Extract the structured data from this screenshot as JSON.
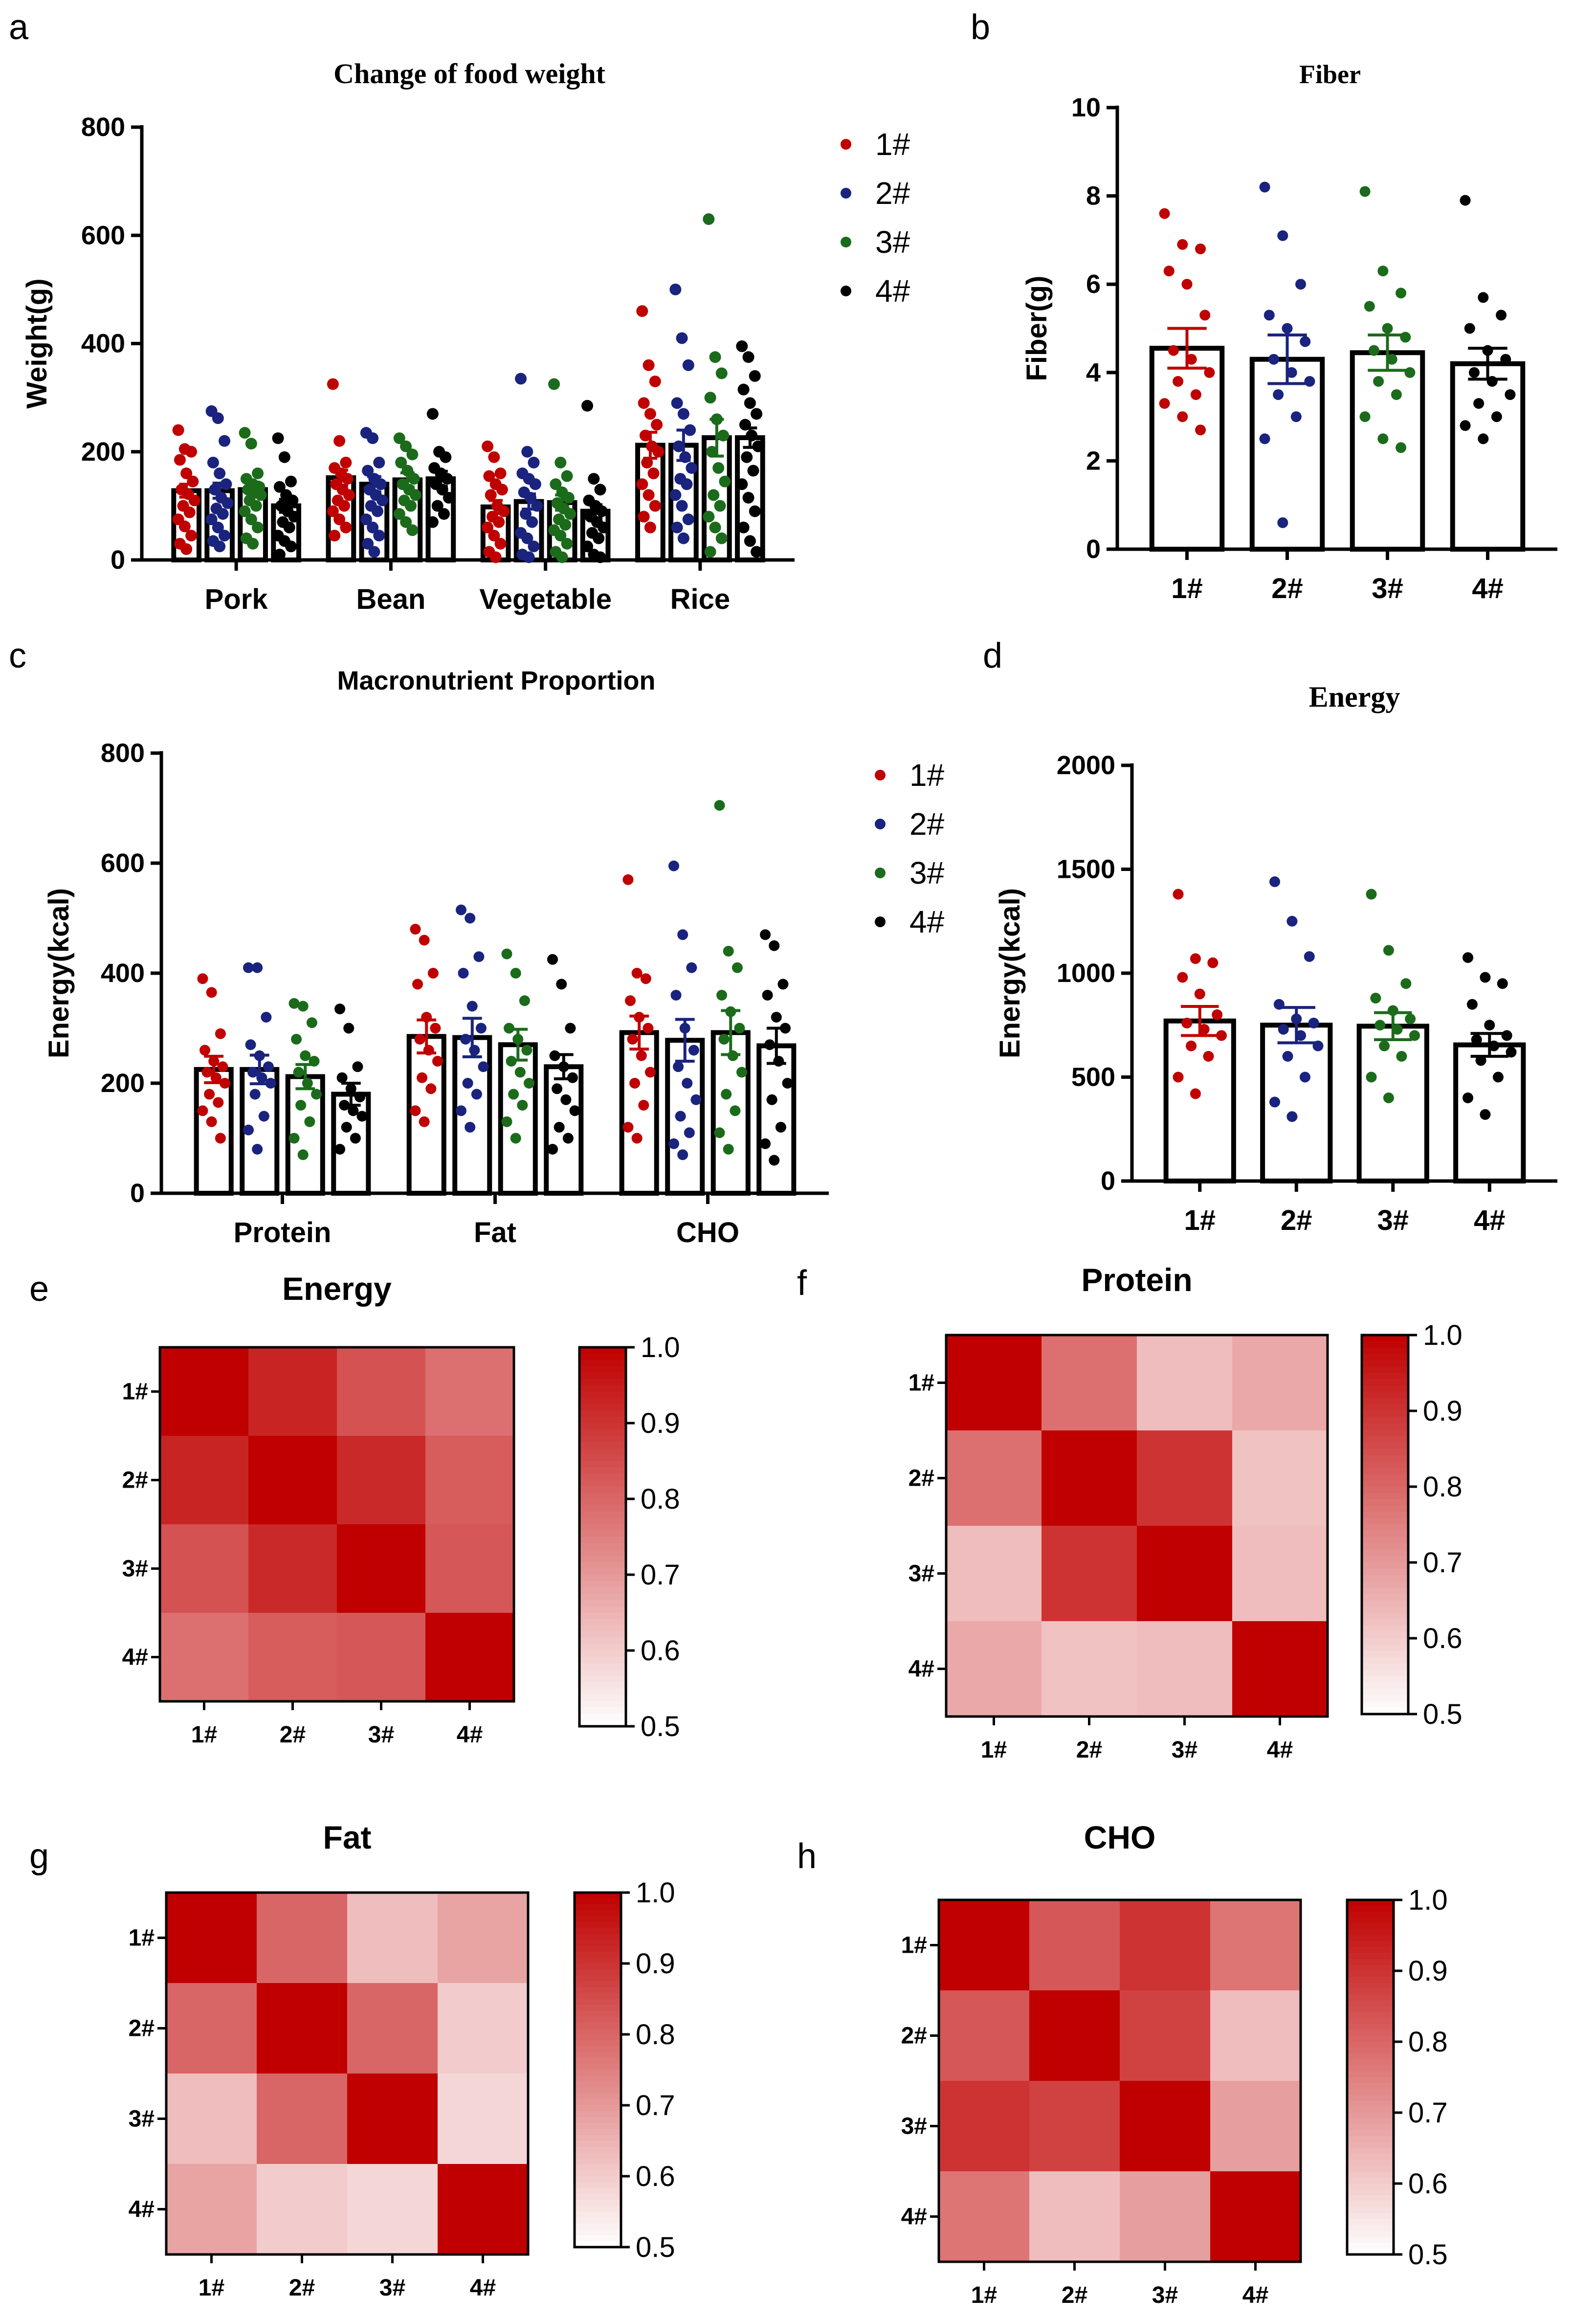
{
  "colors": {
    "s1": "#c00000",
    "s2": "#1a237e",
    "s3": "#1b6b1b",
    "s4": "#000000",
    "heat_low": "#ffffff",
    "heat_high": "#c00000"
  },
  "chart_data": [
    {
      "panel": "a",
      "type": "bar",
      "title": "Change of  food weight",
      "ylabel": "Weight(g)",
      "xlabel": "",
      "ylim": [
        0,
        800
      ],
      "yticks": [
        0,
        200,
        400,
        600,
        800
      ],
      "categories": [
        "Pork",
        "Bean",
        "Vegetable",
        "Rice"
      ],
      "legend": [
        "1#",
        "2#",
        "3#",
        "4#"
      ],
      "series": [
        {
          "name": "1#",
          "color": "#c00000",
          "values": [
            128,
            152,
            98,
            212
          ],
          "sem": [
            12,
            14,
            12,
            24
          ],
          "points": [
            [
              240,
              205,
              200,
              185,
              160,
              145,
              130,
              122,
              110,
              100,
              88,
              75,
              62,
              45,
              30,
              20
            ],
            [
              325,
              220,
              180,
              170,
              160,
              150,
              140,
              130,
              120,
              110,
              100,
              90,
              75,
              60,
              45
            ],
            [
              210,
              190,
              160,
              155,
              140,
              130,
              120,
              100,
              90,
              80,
              70,
              60,
              45,
              30,
              15,
              5
            ],
            [
              460,
              360,
              330,
              290,
              270,
              250,
              230,
              210,
              200,
              180,
              160,
              140,
              120,
              100,
              80,
              60
            ]
          ]
        },
        {
          "name": "2#",
          "color": "#1a237e",
          "values": [
            128,
            140,
            108,
            212
          ],
          "sem": [
            14,
            14,
            14,
            28
          ],
          "points": [
            [
              275,
              262,
              220,
              180,
              160,
              140,
              130,
              115,
              105,
              95,
              85,
              75,
              60,
              45,
              35,
              25
            ],
            [
              235,
              225,
              180,
              165,
              150,
              140,
              130,
              120,
              110,
              100,
              90,
              75,
              60,
              45,
              30,
              15
            ],
            [
              335,
              200,
              180,
              160,
              150,
              140,
              125,
              115,
              100,
              85,
              70,
              50,
              40,
              25,
              10,
              5
            ],
            [
              500,
              410,
              360,
              290,
              270,
              240,
              210,
              190,
              170,
              150,
              140,
              120,
              100,
              75,
              60,
              40
            ]
          ]
        },
        {
          "name": "3#",
          "color": "#1b6b1b",
          "values": [
            130,
            148,
            106,
            226
          ],
          "sem": [
            14,
            13,
            14,
            34
          ],
          "points": [
            [
              235,
              215,
              160,
              150,
              140,
              135,
              130,
              125,
              120,
              110,
              100,
              90,
              75,
              60,
              40,
              30
            ],
            [
              225,
              210,
              195,
              180,
              165,
              150,
              140,
              130,
              120,
              110,
              100,
              85,
              70,
              55
            ],
            [
              325,
              180,
              155,
              140,
              125,
              115,
              105,
              95,
              85,
              75,
              65,
              55,
              45,
              30,
              15,
              5
            ],
            [
              630,
              375,
              345,
              300,
              260,
              230,
              200,
              170,
              145,
              120,
              100,
              80,
              60,
              40,
              15
            ]
          ]
        },
        {
          "name": "4#",
          "color": "#000000",
          "values": [
            100,
            150,
            90,
            226
          ],
          "sem": [
            12,
            14,
            12,
            18
          ],
          "points": [
            [
              225,
              190,
              145,
              135,
              120,
              110,
              100,
              90,
              80,
              70,
              60,
              45,
              35,
              25,
              10
            ],
            [
              270,
              200,
              190,
              170,
              160,
              150,
              140,
              130,
              115,
              100,
              85,
              70
            ],
            [
              285,
              150,
              130,
              110,
              100,
              90,
              80,
              70,
              60,
              50,
              40,
              25,
              10,
              5
            ],
            [
              395,
              375,
              340,
              315,
              290,
              270,
              250,
              230,
              210,
              190,
              165,
              140,
              115,
              90,
              60,
              35,
              15
            ]
          ]
        }
      ]
    },
    {
      "panel": "b",
      "type": "bar",
      "title": "Fiber",
      "ylabel": "Fiber(g)",
      "xlabel": "",
      "ylim": [
        0,
        10
      ],
      "yticks": [
        0,
        2,
        4,
        6,
        8,
        10
      ],
      "categories": [
        "1#",
        "2#",
        "3#",
        "4#"
      ],
      "values": [
        4.55,
        4.3,
        4.45,
        4.2
      ],
      "sem": [
        0.45,
        0.55,
        0.4,
        0.35
      ],
      "colors": [
        "#c00000",
        "#1a237e",
        "#1b6b1b",
        "#000000"
      ],
      "points": [
        [
          7.6,
          6.9,
          6.8,
          6.3,
          6.0,
          5.3,
          4.5,
          4.3,
          4.0,
          3.8,
          3.5,
          3.3,
          3.0,
          2.7
        ],
        [
          8.2,
          7.1,
          6.0,
          5.3,
          5.0,
          4.7,
          4.3,
          4.0,
          3.8,
          3.5,
          3.0,
          2.5,
          0.6
        ],
        [
          8.1,
          6.3,
          5.8,
          5.5,
          5.0,
          4.8,
          4.5,
          4.3,
          4.0,
          3.8,
          3.5,
          3.0,
          2.5,
          2.3
        ],
        [
          7.9,
          5.7,
          5.3,
          5.0,
          4.5,
          4.3,
          4.0,
          3.8,
          3.5,
          3.3,
          3.0,
          2.8,
          2.5
        ]
      ]
    },
    {
      "panel": "c",
      "type": "bar",
      "title": "Macronutrient Proportion",
      "ylabel": "Energy(kcal)",
      "xlabel": "",
      "ylim": [
        0,
        800
      ],
      "yticks": [
        0,
        200,
        400,
        600,
        800
      ],
      "categories": [
        "Protein",
        "Fat",
        "CHO"
      ],
      "legend": [
        "1#",
        "2#",
        "3#",
        "4#"
      ],
      "series": [
        {
          "name": "1#",
          "color": "#c00000",
          "values": [
            225,
            285,
            292
          ],
          "sem": [
            24,
            30,
            30
          ],
          "points": [
            [
              390,
              365,
              290,
              260,
              240,
              230,
              220,
              210,
              200,
              180,
              165,
              150,
              130,
              100
            ],
            [
              480,
              460,
              400,
              380,
              320,
              300,
              280,
              260,
              240,
              210,
              190,
              150,
              130
            ],
            [
              570,
              400,
              390,
              350,
              320,
              300,
              280,
              250,
              220,
              200,
              160,
              120,
              100
            ]
          ]
        },
        {
          "name": "2#",
          "color": "#1a237e",
          "values": [
            225,
            283,
            278
          ],
          "sem": [
            26,
            35,
            38
          ],
          "points": [
            [
              410,
              410,
              320,
              270,
              250,
              230,
              220,
              210,
              200,
              180,
              140,
              115,
              80
            ],
            [
              515,
              500,
              430,
              400,
              340,
              300,
              280,
              260,
              230,
              200,
              180,
              150,
              120
            ],
            [
              595,
              470,
              410,
              360,
              300,
              260,
              230,
              200,
              170,
              140,
              110,
              90,
              70
            ]
          ]
        },
        {
          "name": "3#",
          "color": "#1b6b1b",
          "values": [
            212,
            270,
            292
          ],
          "sem": [
            22,
            28,
            40
          ],
          "points": [
            [
              345,
              340,
              310,
              280,
              250,
              240,
              220,
              200,
              180,
              160,
              130,
              100,
              70
            ],
            [
              435,
              400,
              350,
              300,
              280,
              260,
              240,
              220,
              200,
              180,
              160,
              130,
              100
            ],
            [
              705,
              440,
              410,
              360,
              330,
              300,
              280,
              250,
              220,
              180,
              150,
              110,
              80
            ]
          ]
        },
        {
          "name": "4#",
          "color": "#000000",
          "values": [
            180,
            230,
            268
          ],
          "sem": [
            20,
            22,
            32
          ],
          "points": [
            [
              335,
              300,
              230,
              210,
              190,
              175,
              160,
              150,
              140,
              120,
              100,
              80
            ],
            [
              425,
              380,
              300,
              250,
              230,
              210,
              190,
              170,
              150,
              120,
              100,
              80
            ],
            [
              470,
              450,
              380,
              360,
              320,
              300,
              270,
              240,
              200,
              170,
              120,
              90,
              60
            ]
          ]
        }
      ]
    },
    {
      "panel": "d",
      "type": "bar",
      "title": "Energy",
      "ylabel": "Energy(kcal)",
      "xlabel": "",
      "ylim": [
        0,
        2000
      ],
      "yticks": [
        0,
        500,
        1000,
        1500,
        2000
      ],
      "categories": [
        "1#",
        "2#",
        "3#",
        "4#"
      ],
      "values": [
        770,
        750,
        745,
        655
      ],
      "sem": [
        70,
        85,
        65,
        55
      ],
      "colors": [
        "#c00000",
        "#1a237e",
        "#1b6b1b",
        "#000000"
      ],
      "points": [
        [
          1380,
          1070,
          1050,
          980,
          900,
          800,
          760,
          730,
          700,
          650,
          600,
          500,
          420
        ],
        [
          1440,
          1250,
          1080,
          850,
          780,
          760,
          730,
          700,
          650,
          600,
          500,
          380,
          310
        ],
        [
          1380,
          1110,
          950,
          880,
          820,
          780,
          750,
          730,
          700,
          650,
          600,
          500,
          400
        ],
        [
          1075,
          980,
          950,
          850,
          750,
          700,
          680,
          650,
          620,
          580,
          500,
          400,
          320
        ]
      ]
    },
    {
      "panel": "e",
      "type": "heatmap",
      "title": "Energy",
      "labels": [
        "1#",
        "2#",
        "3#",
        "4#"
      ],
      "colorbar": {
        "min": 0.5,
        "max": 1.0,
        "ticks": [
          "1.0",
          "0.9",
          "0.8",
          "0.7",
          "0.6",
          "0.5"
        ]
      },
      "matrix": [
        [
          1.0,
          0.93,
          0.84,
          0.78
        ],
        [
          0.93,
          1.0,
          0.92,
          0.82
        ],
        [
          0.84,
          0.92,
          1.0,
          0.83
        ],
        [
          0.78,
          0.82,
          0.83,
          1.0
        ]
      ]
    },
    {
      "panel": "f",
      "type": "heatmap",
      "title": "Protein",
      "labels": [
        "1#",
        "2#",
        "3#",
        "4#"
      ],
      "colorbar": {
        "min": 0.5,
        "max": 1.0,
        "ticks": [
          "1.0",
          "0.9",
          "0.8",
          "0.7",
          "0.6",
          "0.5"
        ]
      },
      "matrix": [
        [
          1.0,
          0.78,
          0.63,
          0.67
        ],
        [
          0.78,
          1.0,
          0.9,
          0.62
        ],
        [
          0.63,
          0.9,
          1.0,
          0.63
        ],
        [
          0.67,
          0.62,
          0.63,
          1.0
        ]
      ]
    },
    {
      "panel": "g",
      "type": "heatmap",
      "title": "Fat",
      "labels": [
        "1#",
        "2#",
        "3#",
        "4#"
      ],
      "colorbar": {
        "min": 0.5,
        "max": 1.0,
        "ticks": [
          "1.0",
          "0.9",
          "0.8",
          "0.7",
          "0.6",
          "0.5"
        ]
      },
      "matrix": [
        [
          1.0,
          0.8,
          0.63,
          0.68
        ],
        [
          0.8,
          1.0,
          0.8,
          0.6
        ],
        [
          0.63,
          0.8,
          1.0,
          0.58
        ],
        [
          0.68,
          0.6,
          0.58,
          1.0
        ]
      ]
    },
    {
      "panel": "h",
      "type": "heatmap",
      "title": "CHO",
      "labels": [
        "1#",
        "2#",
        "3#",
        "4#"
      ],
      "colorbar": {
        "min": 0.5,
        "max": 1.0,
        "ticks": [
          "1.0",
          "0.9",
          "0.8",
          "0.7",
          "0.6",
          "0.5"
        ]
      },
      "matrix": [
        [
          1.0,
          0.83,
          0.9,
          0.77
        ],
        [
          0.83,
          1.0,
          0.87,
          0.63
        ],
        [
          0.9,
          0.87,
          1.0,
          0.69
        ],
        [
          0.77,
          0.63,
          0.69,
          1.0
        ]
      ]
    }
  ]
}
